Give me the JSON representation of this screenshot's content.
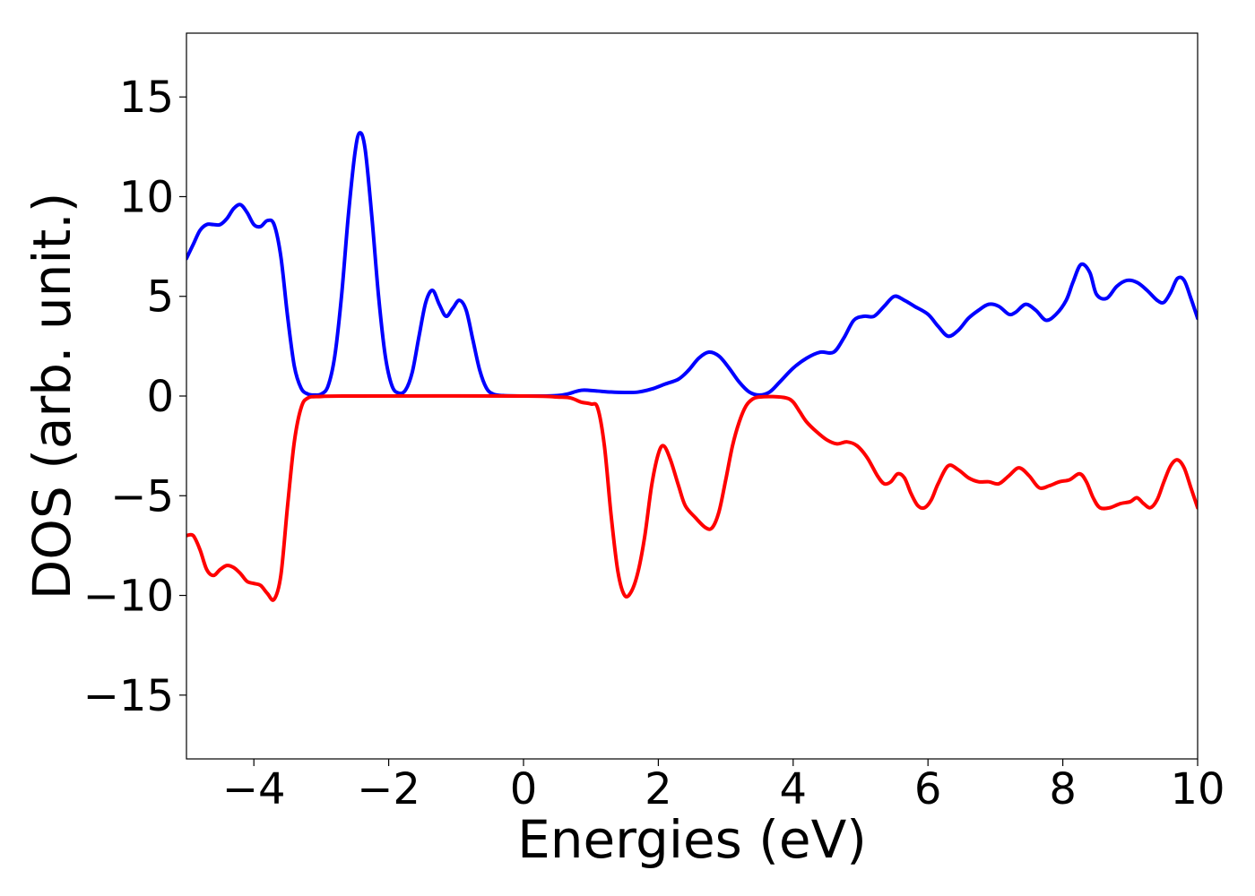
{
  "chart_data": {
    "type": "line",
    "title": "",
    "xlabel": "Energies (eV)",
    "ylabel": "DOS (arb. unit.)",
    "xlim": [
      -5,
      10
    ],
    "ylim": [
      -18.2,
      18.2
    ],
    "xticks": [
      -4,
      -2,
      0,
      2,
      4,
      6,
      8,
      10
    ],
    "yticks": [
      -15,
      -10,
      -5,
      0,
      5,
      10,
      15
    ],
    "xtick_labels": [
      "−4",
      "−2",
      "0",
      "2",
      "4",
      "6",
      "8",
      "10"
    ],
    "ytick_labels": [
      "−15",
      "−10",
      "−5",
      "0",
      "5",
      "10",
      "15"
    ],
    "grid": false,
    "legend": "none",
    "series": [
      {
        "color": "#0000ff",
        "points": [
          [
            -5.0,
            6.9
          ],
          [
            -4.9,
            7.6
          ],
          [
            -4.8,
            8.3
          ],
          [
            -4.7,
            8.6
          ],
          [
            -4.6,
            8.6
          ],
          [
            -4.5,
            8.6
          ],
          [
            -4.4,
            8.9
          ],
          [
            -4.3,
            9.4
          ],
          [
            -4.2,
            9.6
          ],
          [
            -4.1,
            9.2
          ],
          [
            -4.0,
            8.6
          ],
          [
            -3.9,
            8.5
          ],
          [
            -3.8,
            8.8
          ],
          [
            -3.7,
            8.6
          ],
          [
            -3.6,
            7.0
          ],
          [
            -3.5,
            4.0
          ],
          [
            -3.4,
            1.5
          ],
          [
            -3.3,
            0.4
          ],
          [
            -3.2,
            0.1
          ],
          [
            -3.1,
            0.05
          ],
          [
            -3.0,
            0.1
          ],
          [
            -2.9,
            0.5
          ],
          [
            -2.8,
            2.0
          ],
          [
            -2.7,
            5.0
          ],
          [
            -2.6,
            9.0
          ],
          [
            -2.5,
            12.2
          ],
          [
            -2.43,
            13.2
          ],
          [
            -2.35,
            12.4
          ],
          [
            -2.25,
            9.0
          ],
          [
            -2.15,
            5.0
          ],
          [
            -2.05,
            2.0
          ],
          [
            -1.95,
            0.5
          ],
          [
            -1.85,
            0.15
          ],
          [
            -1.75,
            0.3
          ],
          [
            -1.65,
            1.2
          ],
          [
            -1.55,
            3.0
          ],
          [
            -1.45,
            4.7
          ],
          [
            -1.35,
            5.3
          ],
          [
            -1.25,
            4.6
          ],
          [
            -1.15,
            4.0
          ],
          [
            -1.05,
            4.4
          ],
          [
            -0.95,
            4.8
          ],
          [
            -0.85,
            4.3
          ],
          [
            -0.75,
            2.8
          ],
          [
            -0.65,
            1.3
          ],
          [
            -0.55,
            0.4
          ],
          [
            -0.45,
            0.1
          ],
          [
            -0.3,
            0.02
          ],
          [
            0.0,
            0.0
          ],
          [
            0.3,
            0.0
          ],
          [
            0.5,
            0.02
          ],
          [
            0.65,
            0.1
          ],
          [
            0.8,
            0.25
          ],
          [
            0.9,
            0.3
          ],
          [
            1.1,
            0.25
          ],
          [
            1.3,
            0.2
          ],
          [
            1.5,
            0.18
          ],
          [
            1.7,
            0.2
          ],
          [
            1.9,
            0.35
          ],
          [
            2.1,
            0.6
          ],
          [
            2.3,
            0.85
          ],
          [
            2.45,
            1.3
          ],
          [
            2.6,
            1.9
          ],
          [
            2.75,
            2.2
          ],
          [
            2.9,
            2.0
          ],
          [
            3.05,
            1.4
          ],
          [
            3.2,
            0.7
          ],
          [
            3.35,
            0.2
          ],
          [
            3.5,
            0.05
          ],
          [
            3.65,
            0.2
          ],
          [
            3.8,
            0.7
          ],
          [
            4.0,
            1.4
          ],
          [
            4.2,
            1.9
          ],
          [
            4.4,
            2.2
          ],
          [
            4.6,
            2.2
          ],
          [
            4.75,
            2.9
          ],
          [
            4.9,
            3.8
          ],
          [
            5.05,
            4.0
          ],
          [
            5.2,
            4.0
          ],
          [
            5.35,
            4.5
          ],
          [
            5.5,
            5.0
          ],
          [
            5.65,
            4.8
          ],
          [
            5.8,
            4.5
          ],
          [
            6.0,
            4.1
          ],
          [
            6.15,
            3.5
          ],
          [
            6.3,
            3.0
          ],
          [
            6.45,
            3.3
          ],
          [
            6.6,
            3.9
          ],
          [
            6.75,
            4.3
          ],
          [
            6.9,
            4.6
          ],
          [
            7.05,
            4.5
          ],
          [
            7.2,
            4.1
          ],
          [
            7.3,
            4.2
          ],
          [
            7.45,
            4.6
          ],
          [
            7.6,
            4.3
          ],
          [
            7.75,
            3.8
          ],
          [
            7.9,
            4.1
          ],
          [
            8.05,
            4.8
          ],
          [
            8.15,
            5.7
          ],
          [
            8.27,
            6.6
          ],
          [
            8.4,
            6.2
          ],
          [
            8.5,
            5.1
          ],
          [
            8.65,
            4.9
          ],
          [
            8.8,
            5.5
          ],
          [
            8.95,
            5.8
          ],
          [
            9.1,
            5.7
          ],
          [
            9.25,
            5.3
          ],
          [
            9.4,
            4.8
          ],
          [
            9.5,
            4.7
          ],
          [
            9.6,
            5.2
          ],
          [
            9.7,
            5.9
          ],
          [
            9.8,
            5.8
          ],
          [
            9.9,
            4.9
          ],
          [
            10.0,
            3.9
          ]
        ]
      },
      {
        "color": "#ff0000",
        "points": [
          [
            -5.0,
            -7.0
          ],
          [
            -4.9,
            -7.0
          ],
          [
            -4.8,
            -7.7
          ],
          [
            -4.7,
            -8.7
          ],
          [
            -4.6,
            -9.0
          ],
          [
            -4.5,
            -8.7
          ],
          [
            -4.4,
            -8.5
          ],
          [
            -4.3,
            -8.6
          ],
          [
            -4.2,
            -8.9
          ],
          [
            -4.1,
            -9.3
          ],
          [
            -4.0,
            -9.4
          ],
          [
            -3.9,
            -9.5
          ],
          [
            -3.8,
            -9.9
          ],
          [
            -3.7,
            -10.2
          ],
          [
            -3.6,
            -9.0
          ],
          [
            -3.5,
            -5.5
          ],
          [
            -3.4,
            -2.3
          ],
          [
            -3.3,
            -0.6
          ],
          [
            -3.2,
            -0.1
          ],
          [
            -3.0,
            -0.02
          ],
          [
            -2.5,
            0.0
          ],
          [
            0.0,
            0.0
          ],
          [
            0.5,
            -0.05
          ],
          [
            0.7,
            -0.1
          ],
          [
            0.85,
            -0.3
          ],
          [
            1.0,
            -0.4
          ],
          [
            1.1,
            -0.6
          ],
          [
            1.2,
            -2.5
          ],
          [
            1.3,
            -6.0
          ],
          [
            1.4,
            -8.8
          ],
          [
            1.5,
            -10.0
          ],
          [
            1.6,
            -9.8
          ],
          [
            1.7,
            -8.8
          ],
          [
            1.8,
            -7.0
          ],
          [
            1.9,
            -4.5
          ],
          [
            2.0,
            -2.9
          ],
          [
            2.08,
            -2.5
          ],
          [
            2.18,
            -3.2
          ],
          [
            2.3,
            -4.5
          ],
          [
            2.4,
            -5.5
          ],
          [
            2.55,
            -6.1
          ],
          [
            2.7,
            -6.6
          ],
          [
            2.8,
            -6.6
          ],
          [
            2.9,
            -5.8
          ],
          [
            3.0,
            -4.2
          ],
          [
            3.1,
            -2.5
          ],
          [
            3.2,
            -1.3
          ],
          [
            3.3,
            -0.5
          ],
          [
            3.4,
            -0.15
          ],
          [
            3.5,
            -0.05
          ],
          [
            3.7,
            -0.03
          ],
          [
            3.9,
            -0.1
          ],
          [
            4.0,
            -0.3
          ],
          [
            4.1,
            -0.8
          ],
          [
            4.2,
            -1.3
          ],
          [
            4.35,
            -1.8
          ],
          [
            4.5,
            -2.2
          ],
          [
            4.65,
            -2.4
          ],
          [
            4.8,
            -2.3
          ],
          [
            4.95,
            -2.5
          ],
          [
            5.1,
            -3.1
          ],
          [
            5.25,
            -4.0
          ],
          [
            5.35,
            -4.4
          ],
          [
            5.45,
            -4.3
          ],
          [
            5.55,
            -3.9
          ],
          [
            5.65,
            -4.1
          ],
          [
            5.75,
            -4.9
          ],
          [
            5.85,
            -5.5
          ],
          [
            5.95,
            -5.6
          ],
          [
            6.05,
            -5.2
          ],
          [
            6.15,
            -4.4
          ],
          [
            6.3,
            -3.5
          ],
          [
            6.45,
            -3.7
          ],
          [
            6.6,
            -4.1
          ],
          [
            6.75,
            -4.3
          ],
          [
            6.9,
            -4.3
          ],
          [
            7.05,
            -4.4
          ],
          [
            7.2,
            -4.0
          ],
          [
            7.35,
            -3.6
          ],
          [
            7.5,
            -4.0
          ],
          [
            7.65,
            -4.6
          ],
          [
            7.8,
            -4.5
          ],
          [
            7.95,
            -4.3
          ],
          [
            8.1,
            -4.2
          ],
          [
            8.25,
            -3.9
          ],
          [
            8.35,
            -4.3
          ],
          [
            8.45,
            -5.1
          ],
          [
            8.55,
            -5.6
          ],
          [
            8.7,
            -5.6
          ],
          [
            8.85,
            -5.4
          ],
          [
            9.0,
            -5.3
          ],
          [
            9.1,
            -5.1
          ],
          [
            9.2,
            -5.4
          ],
          [
            9.3,
            -5.6
          ],
          [
            9.4,
            -5.2
          ],
          [
            9.5,
            -4.3
          ],
          [
            9.6,
            -3.5
          ],
          [
            9.7,
            -3.2
          ],
          [
            9.8,
            -3.6
          ],
          [
            9.9,
            -4.6
          ],
          [
            10.0,
            -5.6
          ]
        ]
      }
    ]
  }
}
